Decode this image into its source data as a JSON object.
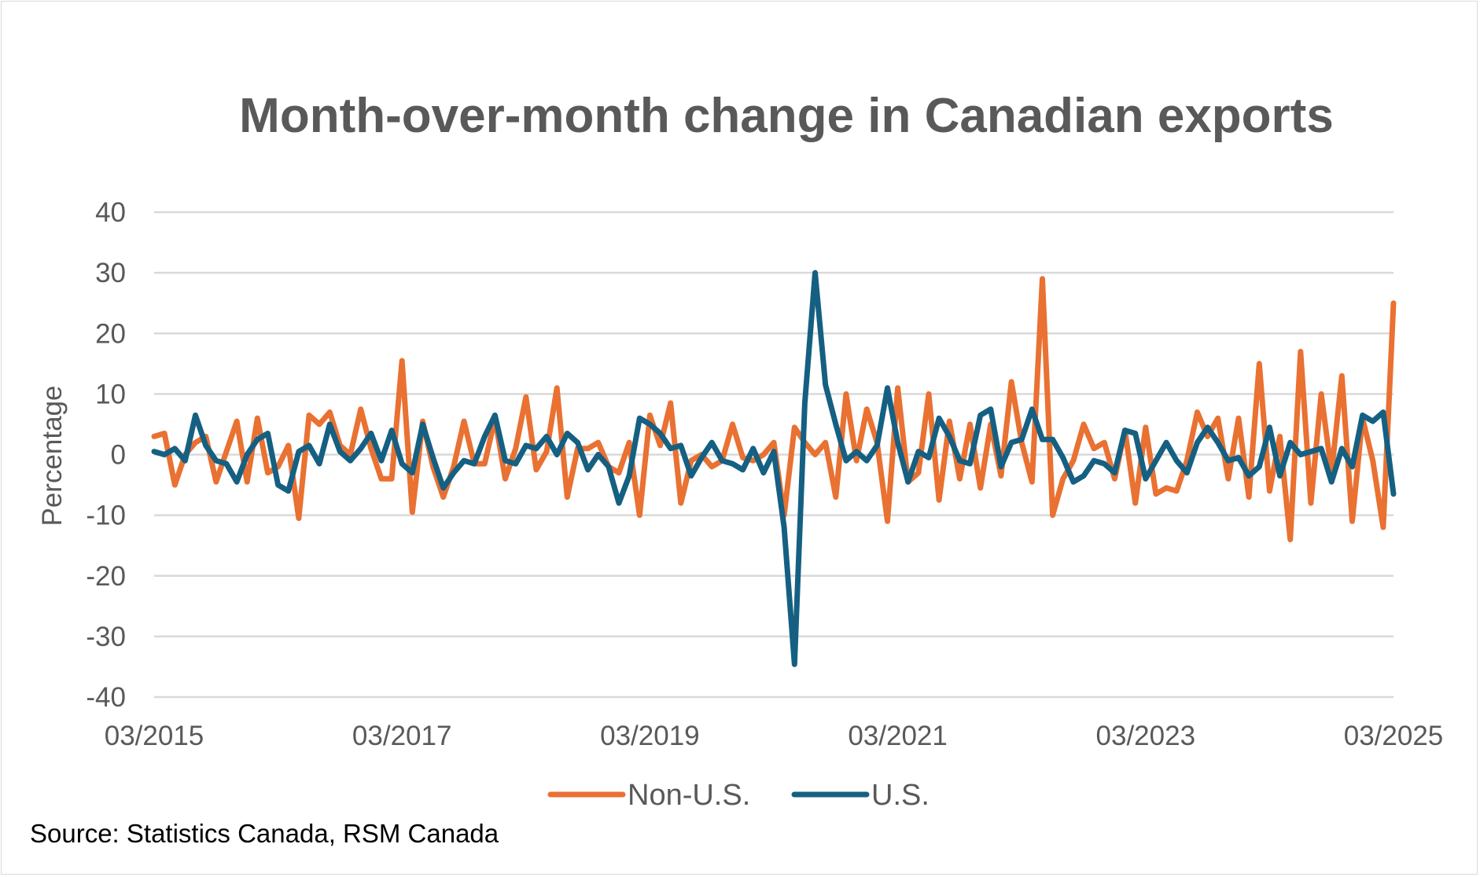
{
  "chart_data": {
    "type": "line",
    "title": "Month-over-month change in Canadian exports",
    "xlabel": "",
    "ylabel": "Percentage",
    "ylim": [
      -40,
      40
    ],
    "yticks": [
      "40",
      "30",
      "20",
      "10",
      "0",
      "-10",
      "-20",
      "-30",
      "-40"
    ],
    "ytick_values": [
      40,
      30,
      20,
      10,
      0,
      -10,
      -20,
      -30,
      -40
    ],
    "xtick_labels": [
      "03/2015",
      "03/2017",
      "03/2019",
      "03/2021",
      "03/2023",
      "03/2025"
    ],
    "x_start": "03/2015",
    "x_end": "03/2025",
    "x_unit": "month",
    "grid": true,
    "legend_position": "bottom",
    "series": [
      {
        "name": "Non-U.S.",
        "color": "#E97132",
        "values": [
          3,
          3.5,
          -5,
          0,
          2,
          3,
          -4.5,
          0.5,
          5.5,
          -4.5,
          6,
          -3,
          -2,
          1.5,
          -10.5,
          6.5,
          5,
          7,
          1.5,
          0,
          7.5,
          1,
          -4,
          -4,
          15.5,
          -9.5,
          5.5,
          -2,
          -7,
          -2,
          5.5,
          -1.5,
          -1.5,
          6,
          -4,
          1,
          9.5,
          -2.5,
          0.5,
          11,
          -7,
          1,
          1,
          2,
          -2,
          -3,
          2,
          -10,
          6.5,
          1.5,
          8.5,
          -8,
          -1,
          0,
          -2,
          -1,
          5,
          -0.5,
          -1,
          0,
          2,
          -10,
          4.5,
          2,
          0,
          2,
          -7,
          10,
          -1,
          7.5,
          2,
          -11,
          11,
          -4.5,
          -3,
          10,
          -7.5,
          5.5,
          -4,
          5,
          -5.5,
          5,
          -3.5,
          12,
          2,
          -4.5,
          29,
          -10,
          -4,
          -1,
          5,
          1,
          2,
          -4,
          4,
          -8,
          4.5,
          -6.5,
          -5.5,
          -6,
          -1,
          7,
          3,
          6,
          -4,
          6,
          -7,
          15,
          -6,
          3,
          -14,
          17,
          -8,
          10,
          -3,
          13,
          -11,
          6,
          -1,
          -12,
          25
        ]
      },
      {
        "name": "U.S.",
        "color": "#156082",
        "values": [
          0.5,
          0,
          1,
          -1,
          6.5,
          1.5,
          -1,
          -1.5,
          -4.5,
          0,
          2.5,
          3.5,
          -5,
          -6,
          0.5,
          1.5,
          -1.5,
          5,
          0.5,
          -1,
          1,
          3.5,
          -1,
          4,
          -1.5,
          -3,
          5,
          -0.5,
          -5.5,
          -3,
          -1,
          -1.5,
          3,
          6.5,
          -1,
          -1.5,
          1.5,
          1,
          3,
          0,
          3.5,
          2,
          -2.5,
          0,
          -2,
          -8,
          -3.5,
          6,
          5,
          3.5,
          1,
          1.5,
          -3.5,
          -0.5,
          2,
          -1,
          -1.5,
          -2.5,
          1,
          -3,
          0.5,
          -12,
          -34.6,
          8.5,
          30,
          11.5,
          5,
          -1,
          0.5,
          -1,
          1.5,
          11,
          2,
          -4.5,
          0.5,
          -0.5,
          6,
          3,
          -1,
          -1.5,
          6.5,
          7.5,
          -2,
          2,
          2.5,
          7.5,
          2.5,
          2.5,
          -0.5,
          -4.5,
          -3.5,
          -1,
          -1.5,
          -3,
          4,
          3.5,
          -4,
          -1,
          2,
          -1,
          -3,
          2,
          4.5,
          2,
          -1,
          -0.5,
          -3.5,
          -2,
          4.5,
          -3.5,
          2,
          0,
          0.5,
          1,
          -4.5,
          1,
          -2,
          6.5,
          5.5,
          7,
          -6.5
        ]
      }
    ]
  },
  "source": "Source: Statistics Canada, RSM Canada"
}
